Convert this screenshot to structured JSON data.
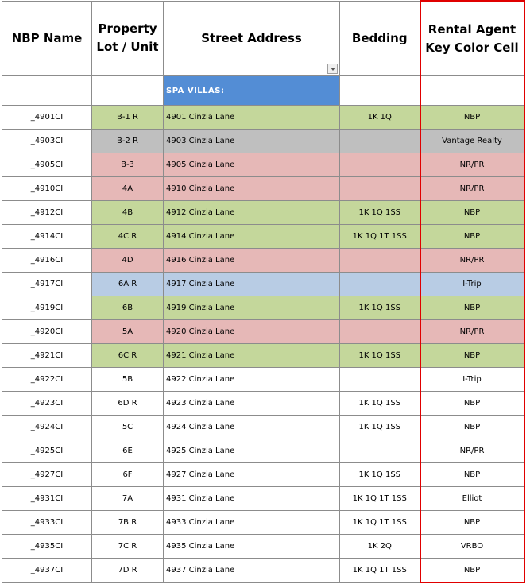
{
  "headers": {
    "name": "NBP Name",
    "lot": "Property Lot / Unit",
    "street": "Street Address",
    "bedding": "Bedding",
    "agent": "Rental Agent Key Color Cell"
  },
  "section_label": "SPA VILLAS:",
  "colors": {
    "green": "#c4d79b",
    "gray": "#bfbfbf",
    "pink": "#e6b8b7",
    "blue": "#b8cce4",
    "section": "#538dd5",
    "agent_border": "#e00000"
  },
  "rows": [
    {
      "name": "_4901CI",
      "lot": "B-1 R",
      "street": "4901 Cinzia Lane",
      "bedding": "1K 1Q",
      "agent": "NBP",
      "color": "green"
    },
    {
      "name": "_4903CI",
      "lot": "B-2 R",
      "street": "4903 Cinzia Lane",
      "bedding": "",
      "agent": "Vantage Realty",
      "color": "gray"
    },
    {
      "name": "_4905CI",
      "lot": "B-3",
      "street": "4905 Cinzia Lane",
      "bedding": "",
      "agent": "NR/PR",
      "color": "pink"
    },
    {
      "name": "_4910CI",
      "lot": "4A",
      "street": "4910 Cinzia Lane",
      "bedding": "",
      "agent": "NR/PR",
      "color": "pink"
    },
    {
      "name": "_4912CI",
      "lot": "4B",
      "street": "4912 Cinzia Lane",
      "bedding": "1K 1Q 1SS",
      "agent": "NBP",
      "color": "green"
    },
    {
      "name": "_4914CI",
      "lot": "4C R",
      "street": "4914 Cinzia Lane",
      "bedding": "1K 1Q 1T 1SS",
      "agent": "NBP",
      "color": "green"
    },
    {
      "name": "_4916CI",
      "lot": "4D",
      "street": "4916 Cinzia Lane",
      "bedding": "",
      "agent": "NR/PR",
      "color": "pink"
    },
    {
      "name": "_4917CI",
      "lot": "6A R",
      "street": "4917 Cinzia Lane",
      "bedding": "",
      "agent": "I-Trip",
      "color": "blue"
    },
    {
      "name": "_4919CI",
      "lot": "6B",
      "street": "4919 Cinzia Lane",
      "bedding": "1K 1Q 1SS",
      "agent": "NBP",
      "color": "green"
    },
    {
      "name": "_4920CI",
      "lot": "5A",
      "street": "4920 Cinzia Lane",
      "bedding": "",
      "agent": "NR/PR",
      "color": "pink"
    },
    {
      "name": "_4921CI",
      "lot": "6C R",
      "street": "4921 Cinzia Lane",
      "bedding": "1K 1Q 1SS",
      "agent": "NBP",
      "color": "green"
    },
    {
      "name": "_4922CI",
      "lot": "5B",
      "street": "4922 Cinzia Lane",
      "bedding": "",
      "agent": "I-Trip",
      "color": "none"
    },
    {
      "name": "_4923CI",
      "lot": "6D R",
      "street": "4923 Cinzia Lane",
      "bedding": "1K 1Q 1SS",
      "agent": "NBP",
      "color": "none"
    },
    {
      "name": "_4924CI",
      "lot": "5C",
      "street": "4924 Cinzia Lane",
      "bedding": "1K 1Q 1SS",
      "agent": "NBP",
      "color": "none"
    },
    {
      "name": "_4925CI",
      "lot": "6E",
      "street": "4925 Cinzia Lane",
      "bedding": "",
      "agent": "NR/PR",
      "color": "none"
    },
    {
      "name": "_4927CI",
      "lot": "6F",
      "street": "4927 Cinzia Lane",
      "bedding": "1K 1Q 1SS",
      "agent": "NBP",
      "color": "none"
    },
    {
      "name": "_4931CI",
      "lot": "7A",
      "street": "4931 Cinzia Lane",
      "bedding": "1K 1Q 1T 1SS",
      "agent": "Elliot",
      "color": "none"
    },
    {
      "name": "_4933CI",
      "lot": "7B R",
      "street": "4933 Cinzia Lane",
      "bedding": "1K 1Q 1T 1SS",
      "agent": "NBP",
      "color": "none"
    },
    {
      "name": "_4935CI",
      "lot": "7C R",
      "street": "4935 Cinzia Lane",
      "bedding": "1K 2Q",
      "agent": "VRBO",
      "color": "none"
    },
    {
      "name": "_4937CI",
      "lot": "7D R",
      "street": "4937 Cinzia Lane",
      "bedding": "1K 1Q 1T 1SS",
      "agent": "NBP",
      "color": "none"
    }
  ]
}
